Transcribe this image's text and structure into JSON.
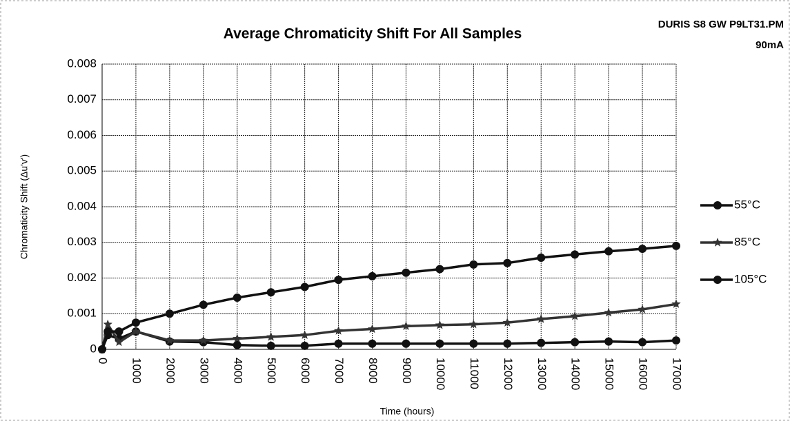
{
  "chart_data": {
    "type": "line",
    "title": "Average Chromaticity Shift For All Samples",
    "annotation": [
      "DURIS S8 GW P9LT31.PM",
      "90mA"
    ],
    "xlabel": "Time (hours)",
    "ylabel": "Chromaticity Shift (Δu'v')",
    "x": [
      0,
      168,
      500,
      1000,
      2000,
      3000,
      4000,
      5000,
      6000,
      7000,
      8000,
      9000,
      10000,
      11000,
      12000,
      13000,
      14000,
      15000,
      16000,
      17000
    ],
    "series": [
      {
        "name": "55°C",
        "color": "#111111",
        "marker": "circle",
        "values": [
          0,
          0.0004,
          0.0003,
          0.0005,
          0.00022,
          0.0002,
          0.00012,
          0.0001,
          0.0001,
          0.00016,
          0.00016,
          0.00016,
          0.00016,
          0.00016,
          0.00016,
          0.00018,
          0.0002,
          0.00022,
          0.0002,
          0.00025
        ]
      },
      {
        "name": "85°C",
        "color": "#333333",
        "marker": "star",
        "values": [
          0,
          0.0007,
          0.0002,
          0.0005,
          0.00025,
          0.00025,
          0.0003,
          0.00035,
          0.0004,
          0.00052,
          0.00057,
          0.00065,
          0.00068,
          0.0007,
          0.00075,
          0.00085,
          0.00093,
          0.00103,
          0.00112,
          0.00127
        ]
      },
      {
        "name": "105°C",
        "color": "#111111",
        "marker": "circle",
        "values": [
          0,
          0.0005,
          0.0005,
          0.00075,
          0.001,
          0.00125,
          0.00145,
          0.0016,
          0.00175,
          0.00195,
          0.00205,
          0.00215,
          0.00225,
          0.00238,
          0.00242,
          0.00257,
          0.00266,
          0.00275,
          0.00282,
          0.0029
        ]
      }
    ],
    "xlim": [
      0,
      17000
    ],
    "xticks": [
      0,
      1000,
      2000,
      3000,
      4000,
      5000,
      6000,
      7000,
      8000,
      9000,
      10000,
      11000,
      12000,
      13000,
      14000,
      15000,
      16000,
      17000
    ],
    "ylim": [
      0,
      0.008
    ],
    "yticks": [
      0,
      0.001,
      0.002,
      0.003,
      0.004,
      0.005,
      0.006,
      0.007,
      0.008
    ],
    "grid": true,
    "legend": "right"
  }
}
